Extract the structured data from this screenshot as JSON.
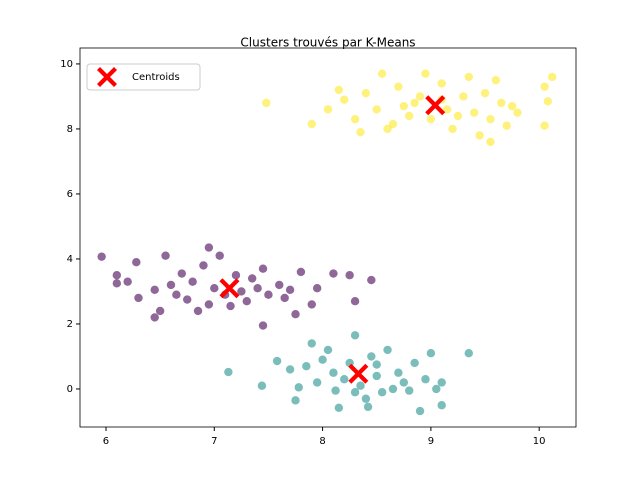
{
  "chart_data": {
    "type": "scatter",
    "title": "Clusters trouvés par K-Means",
    "xlim": [
      5.76,
      10.34
    ],
    "ylim": [
      -1.17,
      10.49
    ],
    "xticks": [
      6,
      7,
      8,
      9,
      10
    ],
    "yticks": [
      0,
      2,
      4,
      6,
      8,
      10
    ],
    "legend": "upper left",
    "alpha": 0.6,
    "series": [
      {
        "color": "#fde725",
        "marker": "o",
        "x": [
          7.48,
          7.9,
          8.05,
          8.15,
          8.2,
          8.3,
          8.4,
          8.5,
          8.55,
          8.6,
          8.7,
          8.75,
          8.8,
          8.9,
          8.95,
          9.0,
          9.1,
          9.15,
          9.2,
          9.3,
          9.35,
          9.4,
          9.45,
          9.5,
          9.55,
          9.6,
          9.65,
          9.7,
          9.75,
          9.8,
          10.05,
          10.05,
          10.12,
          10.08,
          8.35,
          9.55,
          8.65,
          9.25,
          8.85,
          9.1
        ],
        "values": [
          8.8,
          8.15,
          8.6,
          9.2,
          8.9,
          8.3,
          9.1,
          8.6,
          9.7,
          8.0,
          9.3,
          8.7,
          8.4,
          9.0,
          9.7,
          8.3,
          9.4,
          8.6,
          8.0,
          9.0,
          9.6,
          8.5,
          7.8,
          9.1,
          8.3,
          9.5,
          8.8,
          8.1,
          8.7,
          8.5,
          8.1,
          9.3,
          9.6,
          8.85,
          7.9,
          7.6,
          8.15,
          8.4,
          8.8,
          8.9
        ]
      },
      {
        "color": "#440154",
        "marker": "o",
        "x": [
          5.96,
          6.1,
          6.1,
          6.2,
          6.28,
          6.3,
          6.45,
          6.45,
          6.5,
          6.55,
          6.6,
          6.65,
          6.7,
          6.75,
          6.8,
          6.85,
          6.9,
          6.95,
          6.95,
          7.0,
          7.05,
          7.1,
          7.15,
          7.2,
          7.25,
          7.3,
          7.35,
          7.4,
          7.45,
          7.45,
          7.5,
          7.6,
          7.65,
          7.7,
          7.75,
          7.8,
          7.9,
          7.95,
          8.1,
          8.3,
          8.45,
          8.25
        ],
        "values": [
          4.07,
          3.5,
          3.25,
          3.3,
          3.9,
          2.8,
          3.05,
          2.2,
          2.4,
          4.1,
          3.2,
          2.9,
          3.55,
          2.75,
          3.3,
          2.4,
          3.8,
          4.35,
          2.6,
          3.1,
          4.1,
          2.9,
          2.55,
          3.5,
          3.0,
          2.7,
          3.4,
          3.1,
          3.7,
          1.95,
          2.9,
          3.2,
          2.8,
          3.05,
          2.3,
          3.6,
          2.6,
          3.1,
          3.55,
          2.7,
          3.35,
          3.5
        ]
      },
      {
        "color": "#21918c",
        "marker": "o",
        "x": [
          7.13,
          7.44,
          7.58,
          7.7,
          7.75,
          7.78,
          7.85,
          7.9,
          7.95,
          8.0,
          8.05,
          8.1,
          8.12,
          8.15,
          8.2,
          8.25,
          8.3,
          8.35,
          8.4,
          8.45,
          8.5,
          8.55,
          8.6,
          8.7,
          8.75,
          8.8,
          8.85,
          8.9,
          8.95,
          9.0,
          9.05,
          9.1,
          9.1,
          9.35,
          8.42,
          8.65,
          8.3,
          8.5
        ],
        "values": [
          0.52,
          0.1,
          0.86,
          0.6,
          -0.35,
          0.05,
          0.7,
          1.4,
          0.2,
          0.9,
          1.2,
          0.5,
          -0.05,
          -0.58,
          0.3,
          0.8,
          1.65,
          0.1,
          -0.3,
          1.0,
          0.4,
          -0.1,
          1.2,
          0.5,
          0.2,
          -0.05,
          0.8,
          -0.68,
          0.3,
          1.1,
          0.0,
          0.2,
          -0.5,
          1.1,
          -0.55,
          0.0,
          -0.1,
          0.75
        ]
      },
      {
        "name": "Centroids",
        "color": "#ff0000",
        "marker": "X",
        "x": [
          7.14,
          8.33,
          9.04
        ],
        "values": [
          3.1,
          0.47,
          8.73
        ]
      }
    ]
  }
}
